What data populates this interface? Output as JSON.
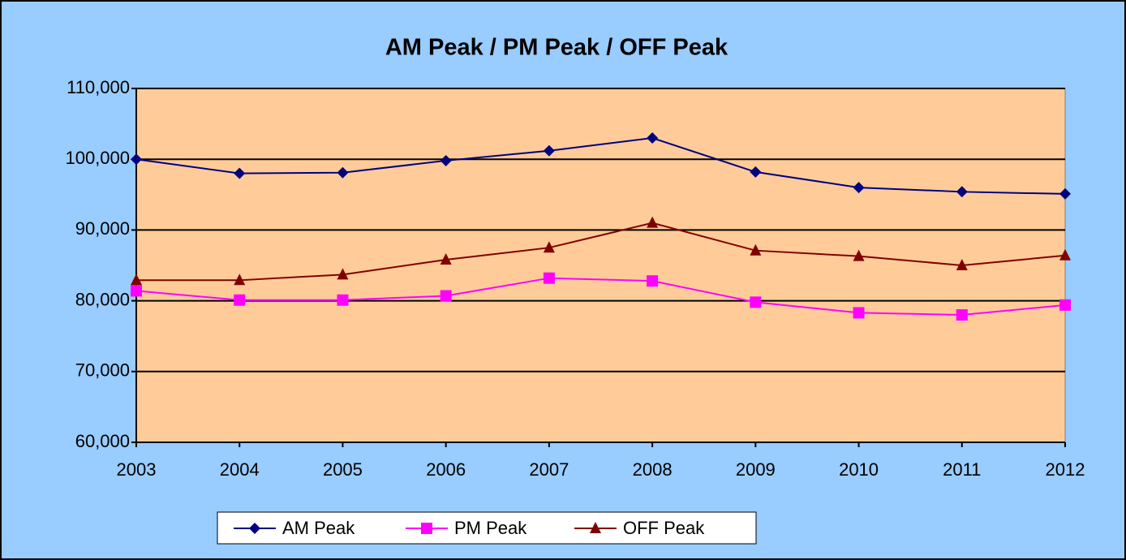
{
  "chart_data": {
    "type": "line",
    "title": "AM Peak / PM Peak / OFF Peak",
    "categories": [
      "2003",
      "2004",
      "2005",
      "2006",
      "2007",
      "2008",
      "2009",
      "2010",
      "2011",
      "2012"
    ],
    "series": [
      {
        "name": "AM Peak",
        "color": "#000080",
        "marker": "diamond",
        "values": [
          100000,
          98000,
          98100,
          99800,
          101200,
          103000,
          98200,
          96000,
          95400,
          95100
        ]
      },
      {
        "name": "PM Peak",
        "color": "#ff00ff",
        "marker": "square",
        "values": [
          81400,
          80100,
          80100,
          80700,
          83200,
          82800,
          79800,
          78300,
          78000,
          79400
        ]
      },
      {
        "name": "OFF Peak",
        "color": "#800000",
        "marker": "triangle",
        "values": [
          82900,
          82900,
          83700,
          85800,
          87500,
          91000,
          87100,
          86300,
          85000,
          86400
        ]
      }
    ],
    "ylim": [
      60000,
      110000
    ],
    "yticks": [
      {
        "value": 60000,
        "label": "60,000"
      },
      {
        "value": 70000,
        "label": "70,000"
      },
      {
        "value": 80000,
        "label": "80,000"
      },
      {
        "value": 90000,
        "label": "90,000"
      },
      {
        "value": 100000,
        "label": "100,000"
      },
      {
        "value": 110000,
        "label": "110,000"
      }
    ],
    "grid": true,
    "legend": "bottom"
  }
}
